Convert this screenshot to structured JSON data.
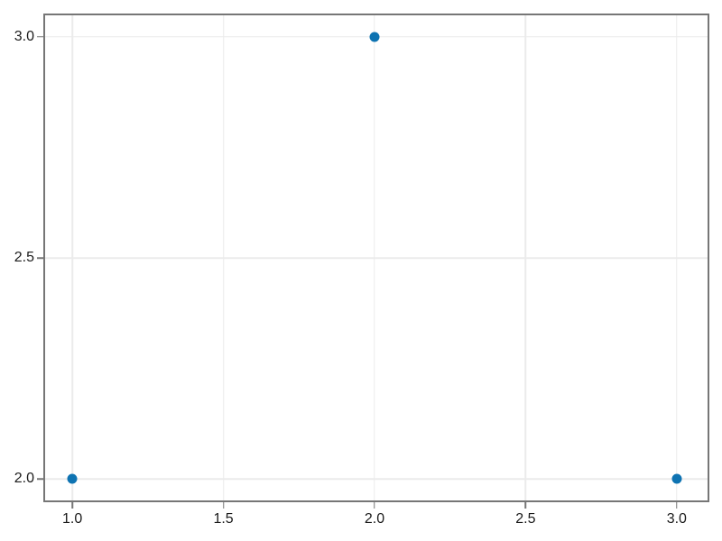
{
  "chart_data": {
    "type": "scatter",
    "title": "",
    "xlabel": "",
    "ylabel": "",
    "legend": null,
    "grid": true,
    "x": [
      1,
      2,
      3
    ],
    "y": [
      2,
      3,
      2
    ],
    "points": [
      {
        "x": 1,
        "y": 2
      },
      {
        "x": 2,
        "y": 3
      },
      {
        "x": 3,
        "y": 2
      }
    ],
    "xticks": [
      1.0,
      1.5,
      2.0,
      2.5,
      3.0
    ],
    "xtick_labels": [
      "1.0",
      "1.5",
      "2.0",
      "2.5",
      "3.0"
    ],
    "yticks": [
      2.0,
      2.5,
      3.0
    ],
    "ytick_labels": [
      "2.0",
      "2.5",
      "3.0"
    ],
    "xlim": [
      0.904,
      3.108
    ],
    "ylim": [
      1.947,
      3.053
    ],
    "style": {
      "background_color": "#ffffff",
      "plot_background_color": "#ffffff",
      "spine_color": "#767676",
      "grid_color": "#ebebeb",
      "tick_color": "#767676",
      "tick_label_color": "#1b1b1b",
      "marker_color": "#0e73b2",
      "marker_diameter_px": 11
    }
  }
}
